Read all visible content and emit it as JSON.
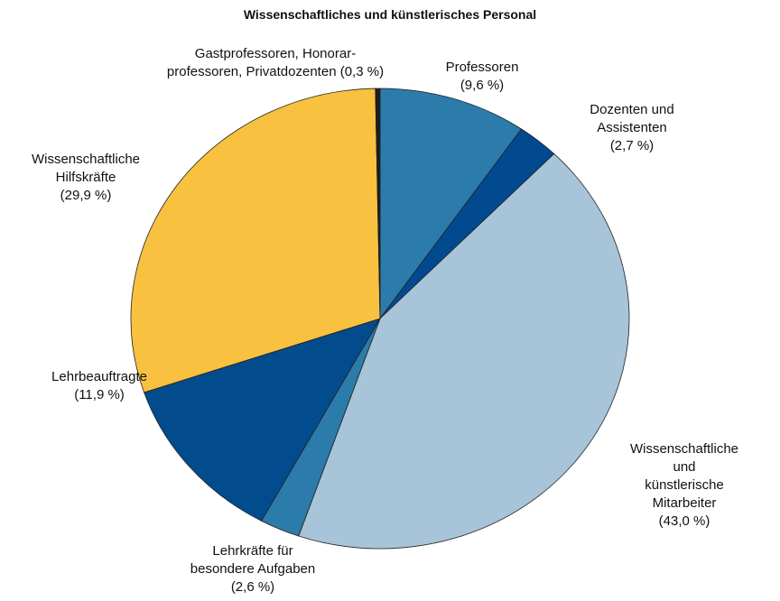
{
  "chart_data": {
    "type": "pie",
    "title": "Wissenschaftliches und künstlerisches Personal",
    "categories": [
      "Professoren",
      "Dozenten und\nAssistenten",
      "Wissenschaftliche und\nkünstlerische Mitarbeiter",
      "Lehrkräfte für\nbesondere Aufgaben",
      "Lehrbeauftragte",
      "Wissenschaftliche\nHilfskräfte",
      "Gastprofessoren, Honorar-\nprofessoren, Privatdozenten"
    ],
    "values": [
      9.6,
      2.7,
      43.0,
      2.6,
      11.9,
      29.9,
      0.3
    ],
    "value_labels": [
      "(9,6 %)",
      "(2,7 %)",
      "(43,0 %)",
      "(2,6 %)",
      "(11,9 %)",
      "(29,9 %)",
      "(0,3 %)"
    ],
    "colors": [
      "#2b7bab",
      "#014a90",
      "#a7c4d8",
      "#2b7bab",
      "#024c8d",
      "#f8c13f",
      "#1c1c1c"
    ]
  }
}
